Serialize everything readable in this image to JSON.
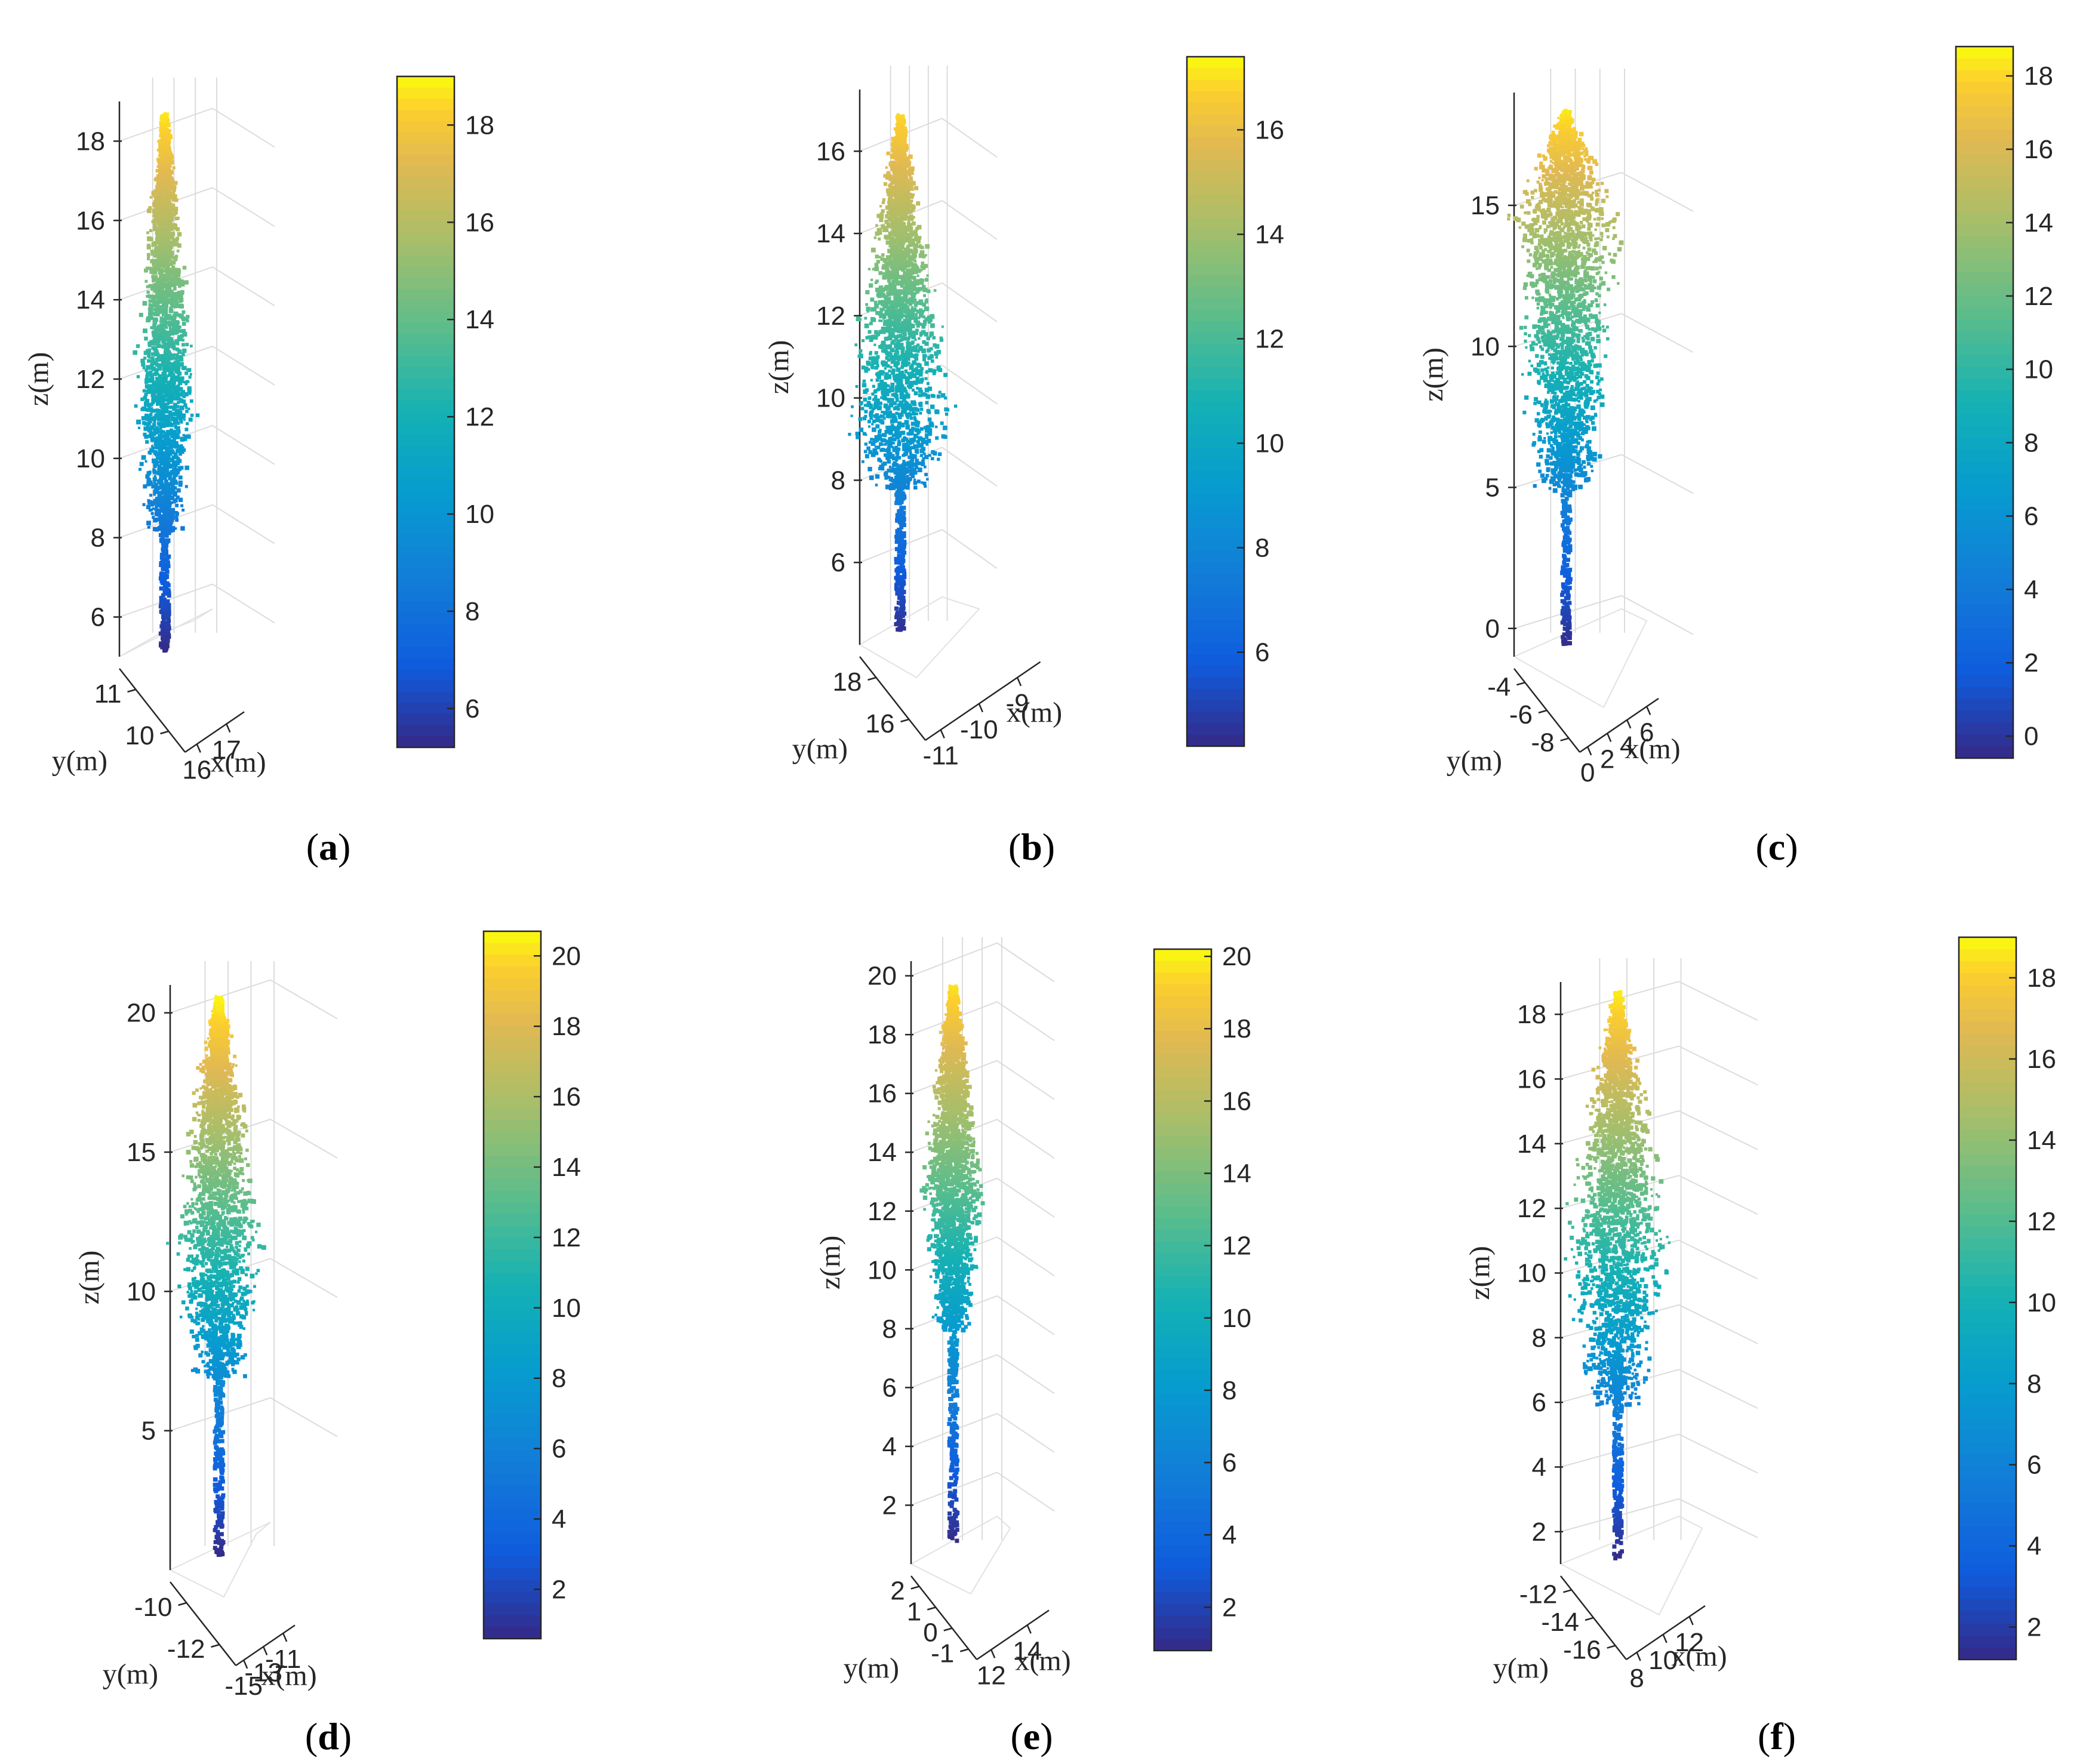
{
  "chart_data": [
    {
      "type": "scatter",
      "caption": "a",
      "zlabel": "z(m)",
      "xlabel": "x(m)",
      "ylabel": "y(m)",
      "z_ticks": [
        6,
        8,
        10,
        12,
        14,
        16,
        18
      ],
      "zlim": [
        5,
        19
      ],
      "x_ticks": [
        16,
        17
      ],
      "y_ticks": [
        11,
        10
      ],
      "colorbar_ticks": [
        6,
        8,
        10,
        12,
        14,
        16,
        18
      ],
      "colorbar_range": [
        5.2,
        19.0
      ],
      "tree": {
        "base_z": 5.2,
        "top_z": 18.7,
        "crown_base_z": 8.2,
        "crown_max_z": 11.5,
        "crown_radius": 1.1,
        "shape": "columnar"
      }
    },
    {
      "type": "scatter",
      "caption": "b",
      "zlabel": "z(m)",
      "xlabel": "x(m)",
      "ylabel": "y(m)",
      "z_ticks": [
        6,
        8,
        10,
        12,
        14,
        16
      ],
      "zlim": [
        4,
        17.5
      ],
      "x_ticks": [
        -11,
        -10,
        -9
      ],
      "y_ticks": [
        18,
        16
      ],
      "colorbar_ticks": [
        6,
        8,
        10,
        12,
        14,
        16
      ],
      "colorbar_range": [
        4.2,
        17.4
      ],
      "tree": {
        "base_z": 4.4,
        "top_z": 16.9,
        "crown_base_z": 7.8,
        "crown_max_z": 9.6,
        "crown_radius": 1.5,
        "shape": "broad-low"
      }
    },
    {
      "type": "scatter",
      "caption": "c",
      "zlabel": "z(m)",
      "xlabel": "x(m)",
      "ylabel": "y(m)",
      "z_ticks": [
        0,
        5,
        10,
        15
      ],
      "zlim": [
        -1,
        19
      ],
      "x_ticks": [
        0,
        2,
        4,
        6
      ],
      "y_ticks": [
        -4,
        -6,
        -8
      ],
      "colorbar_ticks": [
        0,
        2,
        4,
        6,
        8,
        10,
        12,
        14,
        16,
        18
      ],
      "colorbar_range": [
        -0.6,
        18.8
      ],
      "tree": {
        "base_z": -0.6,
        "top_z": 18.4,
        "crown_base_z": 5.0,
        "crown_max_z": 14.5,
        "crown_radius": 2.3,
        "shape": "dense"
      }
    },
    {
      "type": "scatter",
      "caption": "d",
      "zlabel": "z(m)",
      "xlabel": "x(m)",
      "ylabel": "y(m)",
      "z_ticks": [
        5,
        10,
        15,
        20
      ],
      "zlim": [
        0,
        21
      ],
      "x_ticks": [
        -15,
        -13,
        -11
      ],
      "y_ticks": [
        -10,
        -12
      ],
      "colorbar_ticks": [
        2,
        4,
        6,
        8,
        10,
        12,
        14,
        16,
        18,
        20
      ],
      "colorbar_range": [
        0.6,
        20.7
      ],
      "tree": {
        "base_z": 0.6,
        "top_z": 20.6,
        "crown_base_z": 7.0,
        "crown_max_z": 11.8,
        "crown_radius": 2.0,
        "shape": "broad-mid"
      }
    },
    {
      "type": "scatter",
      "caption": "e",
      "zlabel": "z(m)",
      "xlabel": "x(m)",
      "ylabel": "y(m)",
      "z_ticks": [
        2,
        4,
        6,
        8,
        10,
        12,
        14,
        16,
        18,
        20
      ],
      "zlim": [
        0,
        20.5
      ],
      "x_ticks": [
        12,
        14
      ],
      "y_ticks": [
        2,
        1,
        0,
        -1
      ],
      "colorbar_ticks": [
        2,
        4,
        6,
        8,
        10,
        12,
        14,
        16,
        18,
        20
      ],
      "colorbar_range": [
        0.8,
        20.2
      ],
      "tree": {
        "base_z": 0.8,
        "top_z": 19.7,
        "crown_base_z": 8.0,
        "crown_max_z": 13.0,
        "crown_radius": 1.5,
        "shape": "columnar"
      }
    },
    {
      "type": "scatter",
      "caption": "f",
      "zlabel": "z(m)",
      "xlabel": "x(m)",
      "ylabel": "y(m)",
      "z_ticks": [
        2,
        4,
        6,
        8,
        10,
        12,
        14,
        16,
        18
      ],
      "zlim": [
        1,
        19
      ],
      "x_ticks": [
        8,
        10,
        12
      ],
      "y_ticks": [
        -12,
        -14,
        -16
      ],
      "colorbar_ticks": [
        2,
        4,
        6,
        8,
        10,
        12,
        14,
        16,
        18
      ],
      "colorbar_range": [
        1.2,
        19.0
      ],
      "tree": {
        "base_z": 1.2,
        "top_z": 18.7,
        "crown_base_z": 6.0,
        "crown_max_z": 11.0,
        "crown_radius": 2.0,
        "shape": "broad-low"
      }
    }
  ]
}
